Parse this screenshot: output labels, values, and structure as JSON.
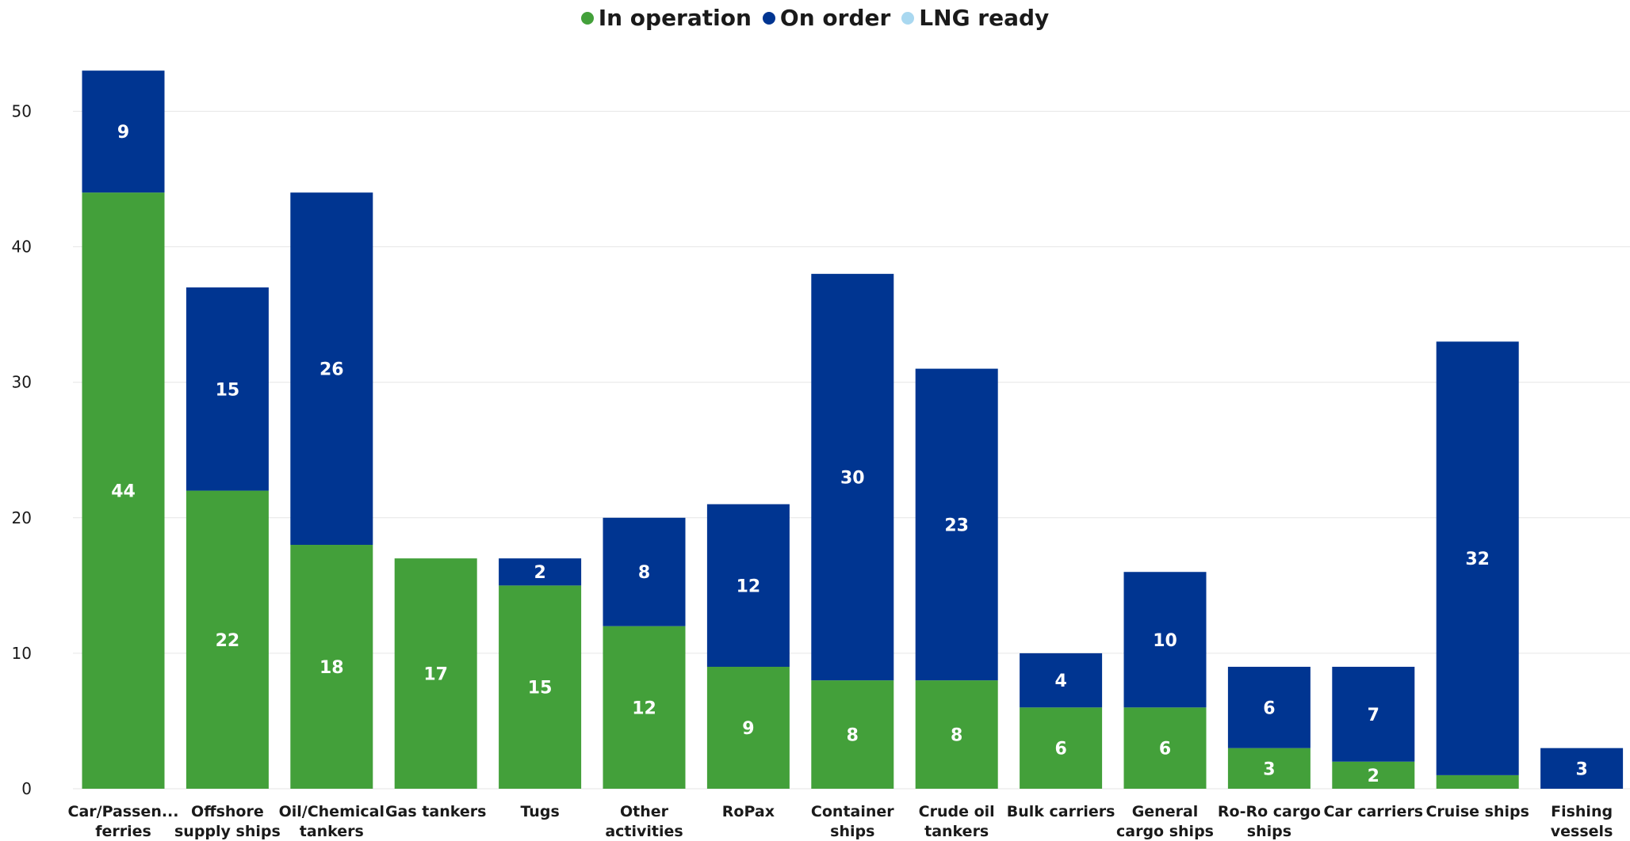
{
  "chart_data": {
    "type": "bar",
    "stacked": true,
    "categories": [
      "Car/Passen... ferries",
      "Offshore supply ships",
      "Oil/Chemical tankers",
      "Gas tankers",
      "Tugs",
      "Other activities",
      "RoPax",
      "Container ships",
      "Crude oil tankers",
      "Bulk carriers",
      "General cargo ships",
      "Ro-Ro cargo ships",
      "Car carriers",
      "Cruise ships",
      "Fishing vessels"
    ],
    "series": [
      {
        "name": "In operation",
        "color": "#43a03a",
        "values": [
          44,
          22,
          18,
          17,
          15,
          12,
          9,
          8,
          8,
          6,
          6,
          3,
          2,
          1,
          0
        ],
        "labels": [
          "44",
          "22",
          "18",
          "17",
          "15",
          "12",
          "9",
          "8",
          "8",
          "6",
          "6",
          "3",
          "2",
          "",
          ""
        ]
      },
      {
        "name": "On order",
        "color": "#003591",
        "values": [
          9,
          15,
          26,
          0,
          2,
          8,
          12,
          30,
          23,
          4,
          10,
          6,
          7,
          32,
          3
        ],
        "labels": [
          "9",
          "15",
          "26",
          "",
          "2",
          "8",
          "12",
          "30",
          "23",
          "4",
          "10",
          "6",
          "7",
          "32",
          "3"
        ]
      },
      {
        "name": "LNG ready",
        "color": "#a9d8f0",
        "values": [
          0,
          0,
          0,
          0,
          0,
          0,
          0,
          0,
          0,
          0,
          0,
          0,
          0,
          0,
          0
        ],
        "labels": [
          "",
          "",
          "",
          "",
          "",
          "",
          "",
          "",
          "",
          "",
          "",
          "",
          "",
          "",
          ""
        ]
      }
    ],
    "ylim": [
      0,
      55
    ],
    "yticks": [
      "0",
      "10",
      "20",
      "30",
      "40",
      "50"
    ],
    "grid": true,
    "legend_position": "top-center",
    "title": "",
    "xlabel": "",
    "ylabel": ""
  }
}
